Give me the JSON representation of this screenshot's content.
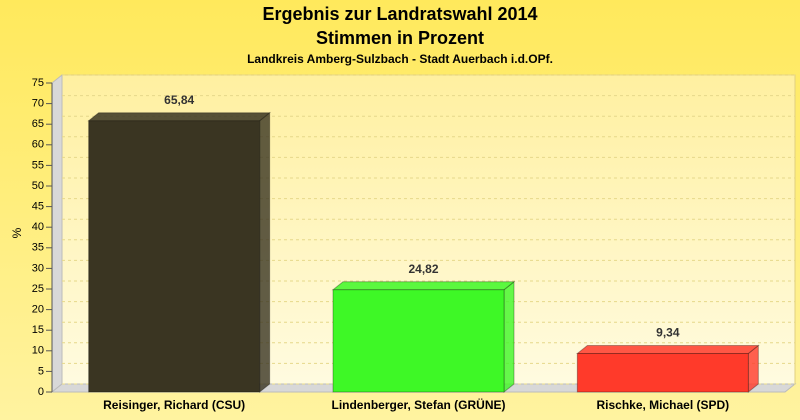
{
  "chart_data": {
    "type": "bar",
    "title": [
      "Ergebnis zur Landratswahl 2014",
      "Stimmen in Prozent"
    ],
    "subtitle": "Landkreis Amberg-Sulzbach - Stadt Auerbach i.d.OPf.",
    "y_label": "%",
    "categories": [
      "Reisinger, Richard (CSU)",
      "Lindenberger, Stefan (GRÜNE)",
      "Rischke, Michael (SPD)"
    ],
    "values": [
      65.84,
      24.82,
      9.34
    ],
    "value_labels": [
      "65,84",
      "24,82",
      "9,34"
    ],
    "colors": [
      "#3a3522",
      "#3ef826",
      "#ff3a2a"
    ],
    "ylim": [
      0,
      75
    ],
    "yticks": [
      0,
      5,
      10,
      15,
      20,
      25,
      30,
      35,
      40,
      45,
      50,
      55,
      60,
      65,
      70,
      75
    ],
    "grid": true
  }
}
